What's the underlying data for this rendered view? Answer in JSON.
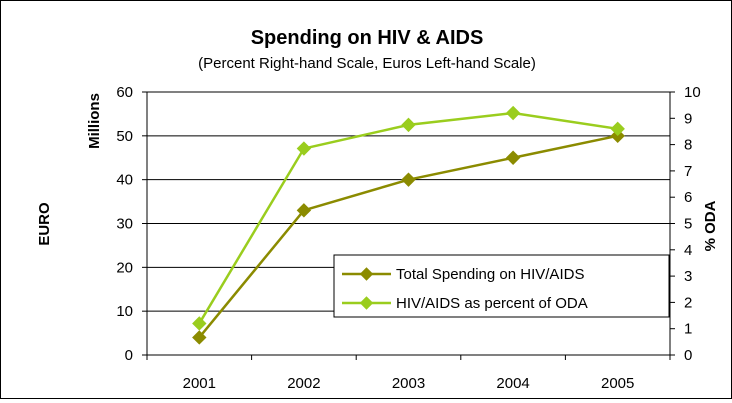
{
  "chart_data": {
    "type": "line",
    "title": "Spending on HIV & AIDS",
    "subtitle": "(Percent Right-hand Scale, Euros Left-hand Scale)",
    "ylabel_left_top": "Millions",
    "ylabel_left": "EURO",
    "ylabel_right": "% ODA",
    "categories": [
      "2001",
      "2002",
      "2003",
      "2004",
      "2005"
    ],
    "y_left": {
      "min": 0,
      "max": 60,
      "step": 10,
      "ticks": [
        "0",
        "10",
        "20",
        "30",
        "40",
        "50",
        "60"
      ]
    },
    "y_right": {
      "min": 0,
      "max": 10,
      "step": 1,
      "ticks": [
        "0",
        "1",
        "2",
        "3",
        "4",
        "5",
        "6",
        "7",
        "8",
        "9",
        "10"
      ]
    },
    "grid": true,
    "legend_position": "bottom-right",
    "series": [
      {
        "name": "Total Spending on HIV/AIDS",
        "axis": "left",
        "color": "#8B8B00",
        "values": [
          4,
          33,
          40,
          45,
          50
        ]
      },
      {
        "name": "HIV/AIDS as percent of ODA",
        "axis": "right",
        "color": "#9ACD1E",
        "values": [
          1.2,
          7.85,
          8.75,
          9.2,
          8.6
        ]
      }
    ]
  }
}
